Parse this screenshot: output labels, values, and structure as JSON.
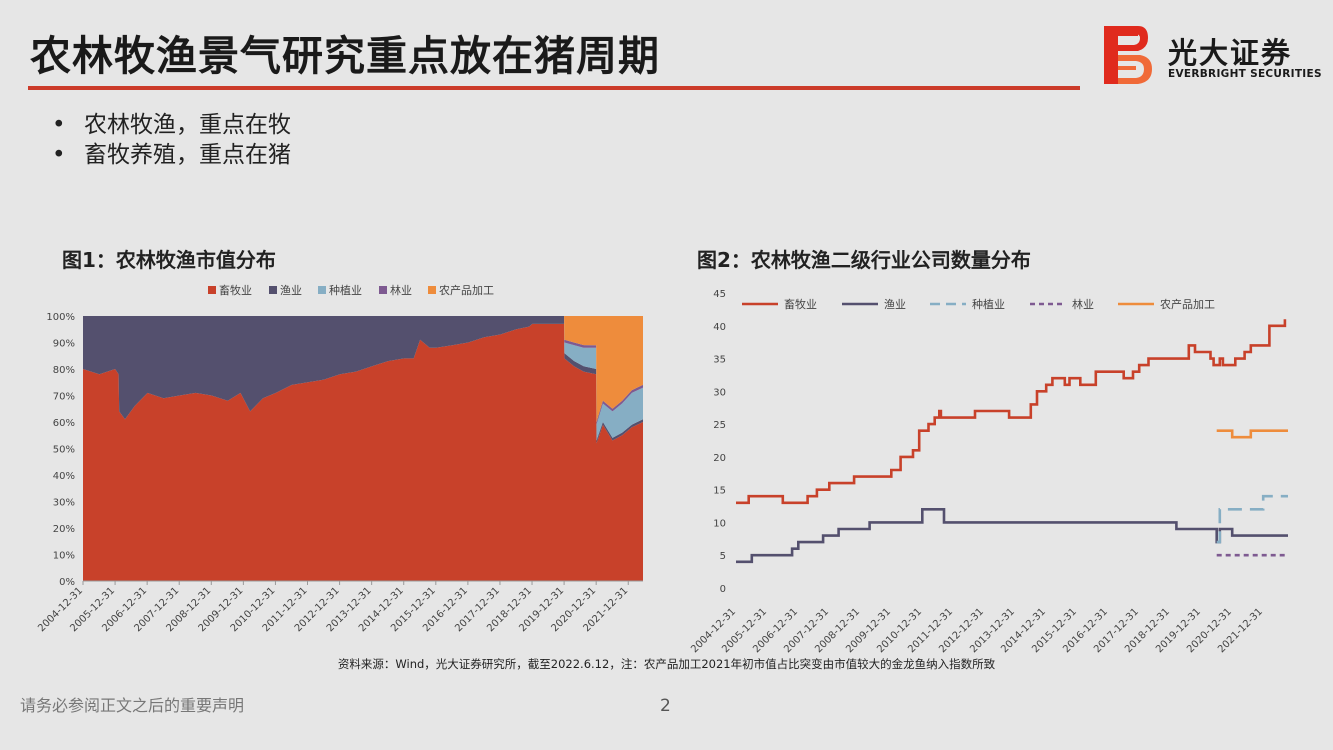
{
  "title": "农林牧渔景气研究重点放在猪周期",
  "logo": {
    "cn": "光大证券",
    "en": "EVERBRIGHT SECURITIES"
  },
  "bullets": [
    "农林牧渔，重点在牧",
    "畜牧养殖，重点在猪"
  ],
  "source": "资料来源：Wind，光大证券研究所，截至2022.6.12，注：农产品加工2021年初市值占比突变由市值较大的金龙鱼纳入指数所致",
  "footer": "请务必参阅正文之后的重要声明",
  "page_number": "2",
  "colors": {
    "livestock": "#c8412a",
    "fishery": "#54506e",
    "planting": "#86aec4",
    "forestry": "#7e5a91",
    "processing": "#ee8c3c",
    "accent": "#cc3b2a"
  },
  "chart_data": [
    {
      "type": "area",
      "stacked_percent": true,
      "title": "图1：农林牧渔市值分布",
      "xlabel": "",
      "ylabel": "",
      "ylim": [
        0,
        1
      ],
      "yticks": [
        "0%",
        "10%",
        "20%",
        "30%",
        "40%",
        "50%",
        "60%",
        "70%",
        "80%",
        "90%",
        "100%"
      ],
      "categories": [
        "2004-12-31",
        "2005-12-31",
        "2006-12-31",
        "2007-12-31",
        "2008-12-31",
        "2009-12-31",
        "2010-12-31",
        "2011-12-31",
        "2012-12-31",
        "2013-12-31",
        "2014-12-31",
        "2015-12-31",
        "2016-12-31",
        "2017-12-31",
        "2018-12-31",
        "2019-12-31",
        "2020-12-31",
        "2021-12-31"
      ],
      "legend": {
        "position": "top",
        "labels": [
          "畜牧业",
          "渔业",
          "种植业",
          "林业",
          "农产品加工"
        ]
      },
      "x": [
        2004.99,
        2005.5,
        2005.99,
        2006.1,
        2006.12,
        2006.3,
        2006.6,
        2007.0,
        2007.5,
        2008.0,
        2008.5,
        2009.0,
        2009.5,
        2009.9,
        2010.2,
        2010.6,
        2011.0,
        2011.5,
        2012.0,
        2012.5,
        2013.0,
        2013.5,
        2014.0,
        2014.5,
        2015.0,
        2015.3,
        2015.5,
        2015.8,
        2016.0,
        2016.5,
        2017.0,
        2017.5,
        2018.0,
        2018.5,
        2018.9,
        2019.0,
        2019.2,
        2019.5,
        2019.8,
        2019.99,
        2020.0,
        2020.3,
        2020.6,
        2020.99,
        2021.0,
        2021.2,
        2021.5,
        2021.8,
        2022.1,
        2022.45
      ],
      "series": [
        {
          "name": "畜牧业",
          "values": [
            0.8,
            0.78,
            0.8,
            0.78,
            0.64,
            0.61,
            0.66,
            0.71,
            0.69,
            0.7,
            0.71,
            0.7,
            0.68,
            0.71,
            0.64,
            0.69,
            0.71,
            0.74,
            0.75,
            0.76,
            0.78,
            0.79,
            0.81,
            0.83,
            0.84,
            0.84,
            0.91,
            0.88,
            0.88,
            0.89,
            0.9,
            0.92,
            0.93,
            0.95,
            0.96,
            0.97,
            0.97,
            0.97,
            0.97,
            0.97,
            0.84,
            0.81,
            0.79,
            0.78,
            0.52,
            0.59,
            0.53,
            0.55,
            0.58,
            0.6
          ]
        },
        {
          "name": "渔业",
          "values": [
            0.2,
            0.22,
            0.2,
            0.22,
            0.36,
            0.39,
            0.34,
            0.29,
            0.31,
            0.3,
            0.29,
            0.3,
            0.32,
            0.29,
            0.36,
            0.31,
            0.29,
            0.26,
            0.25,
            0.24,
            0.22,
            0.21,
            0.19,
            0.17,
            0.16,
            0.16,
            0.09,
            0.12,
            0.12,
            0.11,
            0.1,
            0.08,
            0.07,
            0.05,
            0.04,
            0.03,
            0.03,
            0.03,
            0.03,
            0.03,
            0.02,
            0.02,
            0.02,
            0.02,
            0.01,
            0.01,
            0.01,
            0.01,
            0.01,
            0.01
          ]
        },
        {
          "name": "种植业",
          "values": [
            0,
            0,
            0,
            0,
            0,
            0,
            0,
            0,
            0,
            0,
            0,
            0,
            0,
            0,
            0,
            0,
            0,
            0,
            0,
            0,
            0,
            0,
            0,
            0,
            0,
            0,
            0,
            0,
            0,
            0,
            0,
            0,
            0,
            0,
            0,
            0,
            0,
            0,
            0,
            0,
            0.04,
            0.06,
            0.07,
            0.08,
            0.06,
            0.07,
            0.1,
            0.11,
            0.12,
            0.12
          ]
        },
        {
          "name": "林业",
          "values": [
            0,
            0,
            0,
            0,
            0,
            0,
            0,
            0,
            0,
            0,
            0,
            0,
            0,
            0,
            0,
            0,
            0,
            0,
            0,
            0,
            0,
            0,
            0,
            0,
            0,
            0,
            0,
            0,
            0,
            0,
            0,
            0,
            0,
            0,
            0,
            0,
            0,
            0,
            0,
            0,
            0.01,
            0.01,
            0.01,
            0.01,
            0.01,
            0.01,
            0.01,
            0.01,
            0.01,
            0.01
          ]
        },
        {
          "name": "农产品加工",
          "values": [
            0,
            0,
            0,
            0,
            0,
            0,
            0,
            0,
            0,
            0,
            0,
            0,
            0,
            0,
            0,
            0,
            0,
            0,
            0,
            0,
            0,
            0,
            0,
            0,
            0,
            0,
            0,
            0,
            0,
            0,
            0,
            0,
            0,
            0,
            0,
            0,
            0,
            0,
            0,
            0,
            0.09,
            0.1,
            0.11,
            0.11,
            0.4,
            0.32,
            0.35,
            0.32,
            0.28,
            0.26
          ]
        }
      ]
    },
    {
      "type": "line",
      "step": true,
      "title": "图2：农林牧渔二级行业公司数量分布",
      "xlabel": "",
      "ylabel": "",
      "ylim": [
        0,
        45
      ],
      "yticks": [
        0,
        5,
        10,
        15,
        20,
        25,
        30,
        35,
        40,
        45
      ],
      "categories": [
        "2004-12-31",
        "2005-12-31",
        "2006-12-31",
        "2007-12-31",
        "2008-12-31",
        "2009-12-31",
        "2010-12-31",
        "2011-12-31",
        "2012-12-31",
        "2013-12-31",
        "2014-12-31",
        "2015-12-31",
        "2016-12-31",
        "2017-12-31",
        "2018-12-31",
        "2019-12-31",
        "2020-12-31",
        "2021-12-31"
      ],
      "legend": {
        "position": "top",
        "labels": [
          "畜牧业",
          "渔业",
          "种植业",
          "林业",
          "农产品加工"
        ]
      },
      "series": [
        {
          "name": "畜牧业",
          "style": "solid",
          "points": [
            [
              2004.99,
              13
            ],
            [
              2005.4,
              14
            ],
            [
              2006.5,
              13
            ],
            [
              2007.3,
              14
            ],
            [
              2007.6,
              15
            ],
            [
              2008.0,
              16
            ],
            [
              2008.8,
              17
            ],
            [
              2010.0,
              18
            ],
            [
              2010.3,
              20
            ],
            [
              2010.7,
              21
            ],
            [
              2010.9,
              24
            ],
            [
              2011.2,
              25
            ],
            [
              2011.4,
              26
            ],
            [
              2011.55,
              27
            ],
            [
              2011.6,
              26
            ],
            [
              2012.7,
              27
            ],
            [
              2013.8,
              26
            ],
            [
              2014.5,
              28
            ],
            [
              2014.7,
              30
            ],
            [
              2015.0,
              31
            ],
            [
              2015.2,
              32
            ],
            [
              2015.6,
              31
            ],
            [
              2015.75,
              32
            ],
            [
              2016.1,
              31
            ],
            [
              2016.6,
              33
            ],
            [
              2017.5,
              32
            ],
            [
              2017.8,
              33
            ],
            [
              2018.0,
              34
            ],
            [
              2018.3,
              35
            ],
            [
              2019.6,
              37
            ],
            [
              2019.8,
              36
            ],
            [
              2020.3,
              35
            ],
            [
              2020.4,
              34
            ],
            [
              2020.6,
              35
            ],
            [
              2020.7,
              34
            ],
            [
              2021.1,
              35
            ],
            [
              2021.4,
              36
            ],
            [
              2021.6,
              37
            ],
            [
              2022.2,
              40
            ],
            [
              2022.7,
              41
            ]
          ]
        },
        {
          "name": "渔业",
          "style": "solid",
          "points": [
            [
              2004.99,
              4
            ],
            [
              2005.5,
              5
            ],
            [
              2006.8,
              6
            ],
            [
              2007.0,
              7
            ],
            [
              2007.8,
              8
            ],
            [
              2008.3,
              9
            ],
            [
              2009.3,
              10
            ],
            [
              2011.0,
              12
            ],
            [
              2011.7,
              10
            ],
            [
              2019.2,
              9
            ],
            [
              2020.5,
              7
            ],
            [
              2020.6,
              9
            ],
            [
              2021.0,
              8
            ],
            [
              2022.8,
              8
            ]
          ]
        },
        {
          "name": "种植业",
          "style": "dashed",
          "points": [
            [
              2020.5,
              7
            ],
            [
              2020.6,
              12
            ],
            [
              2022.0,
              14
            ],
            [
              2022.8,
              14
            ]
          ]
        },
        {
          "name": "林业",
          "style": "dashed",
          "points": [
            [
              2020.5,
              5
            ],
            [
              2022.8,
              5
            ]
          ]
        },
        {
          "name": "农产品加工",
          "style": "solid",
          "points": [
            [
              2020.5,
              24
            ],
            [
              2021.0,
              23
            ],
            [
              2021.6,
              24
            ],
            [
              2022.8,
              24
            ]
          ]
        }
      ]
    }
  ]
}
